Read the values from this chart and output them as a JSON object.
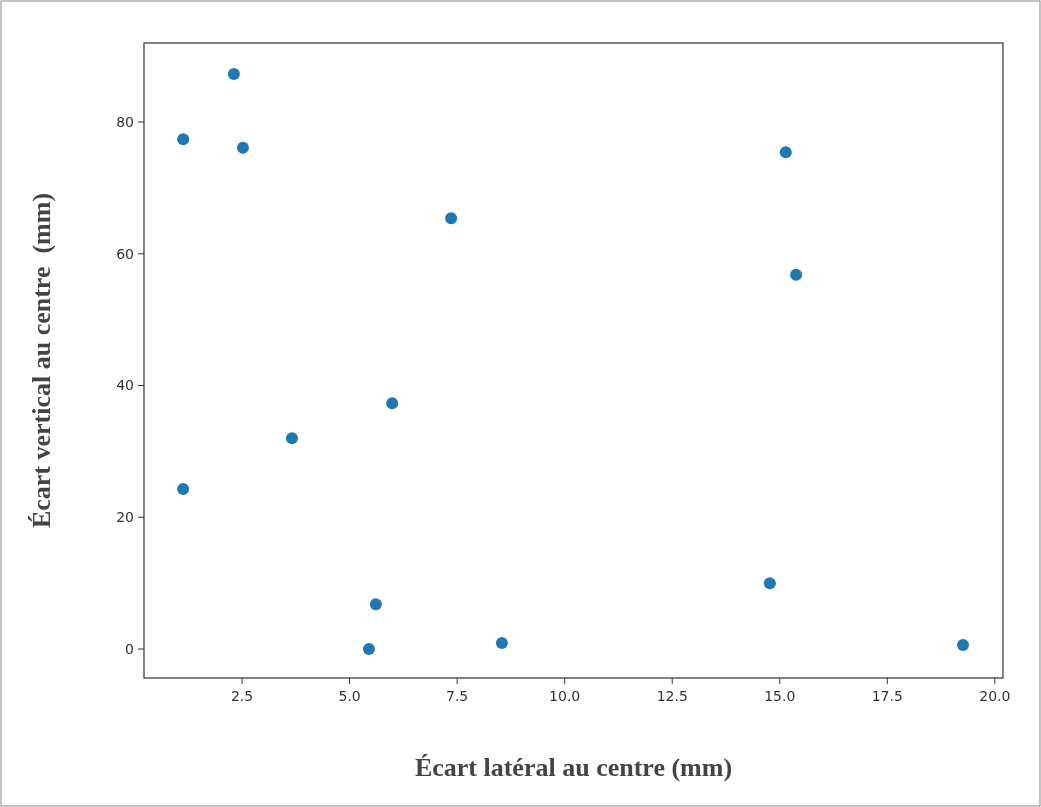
{
  "chart_data": {
    "type": "scatter",
    "xlabel": "Écart latéral au centre (mm)",
    "ylabel": "Écart vertical au centre  (mm)",
    "x": [
      1.13,
      2.31,
      2.52,
      7.36,
      15.14,
      15.38,
      5.99,
      3.66,
      1.13,
      5.61,
      5.45,
      8.54,
      14.77,
      19.26
    ],
    "series": [
      {
        "color": "#1f77b4",
        "values": [
          77.4,
          87.3,
          76.1,
          65.4,
          75.4,
          56.8,
          37.3,
          32.0,
          24.3,
          6.8,
          0.0,
          0.9,
          10.0,
          0.6
        ]
      }
    ],
    "xlim": [
      0.22,
      20.19
    ],
    "ylim": [
      -4.4,
      92
    ],
    "xticks": [
      2.5,
      {
        "value": 5,
        "label": "5.0"
      },
      7.5,
      {
        "value": 10,
        "label": "10.0"
      },
      12.5,
      {
        "value": 15,
        "label": "15.0"
      },
      17.5,
      {
        "value": 20,
        "label": "20.0"
      }
    ],
    "yticks": [
      0,
      20,
      40,
      60,
      80
    ],
    "marker": "circle",
    "grid": false
  }
}
